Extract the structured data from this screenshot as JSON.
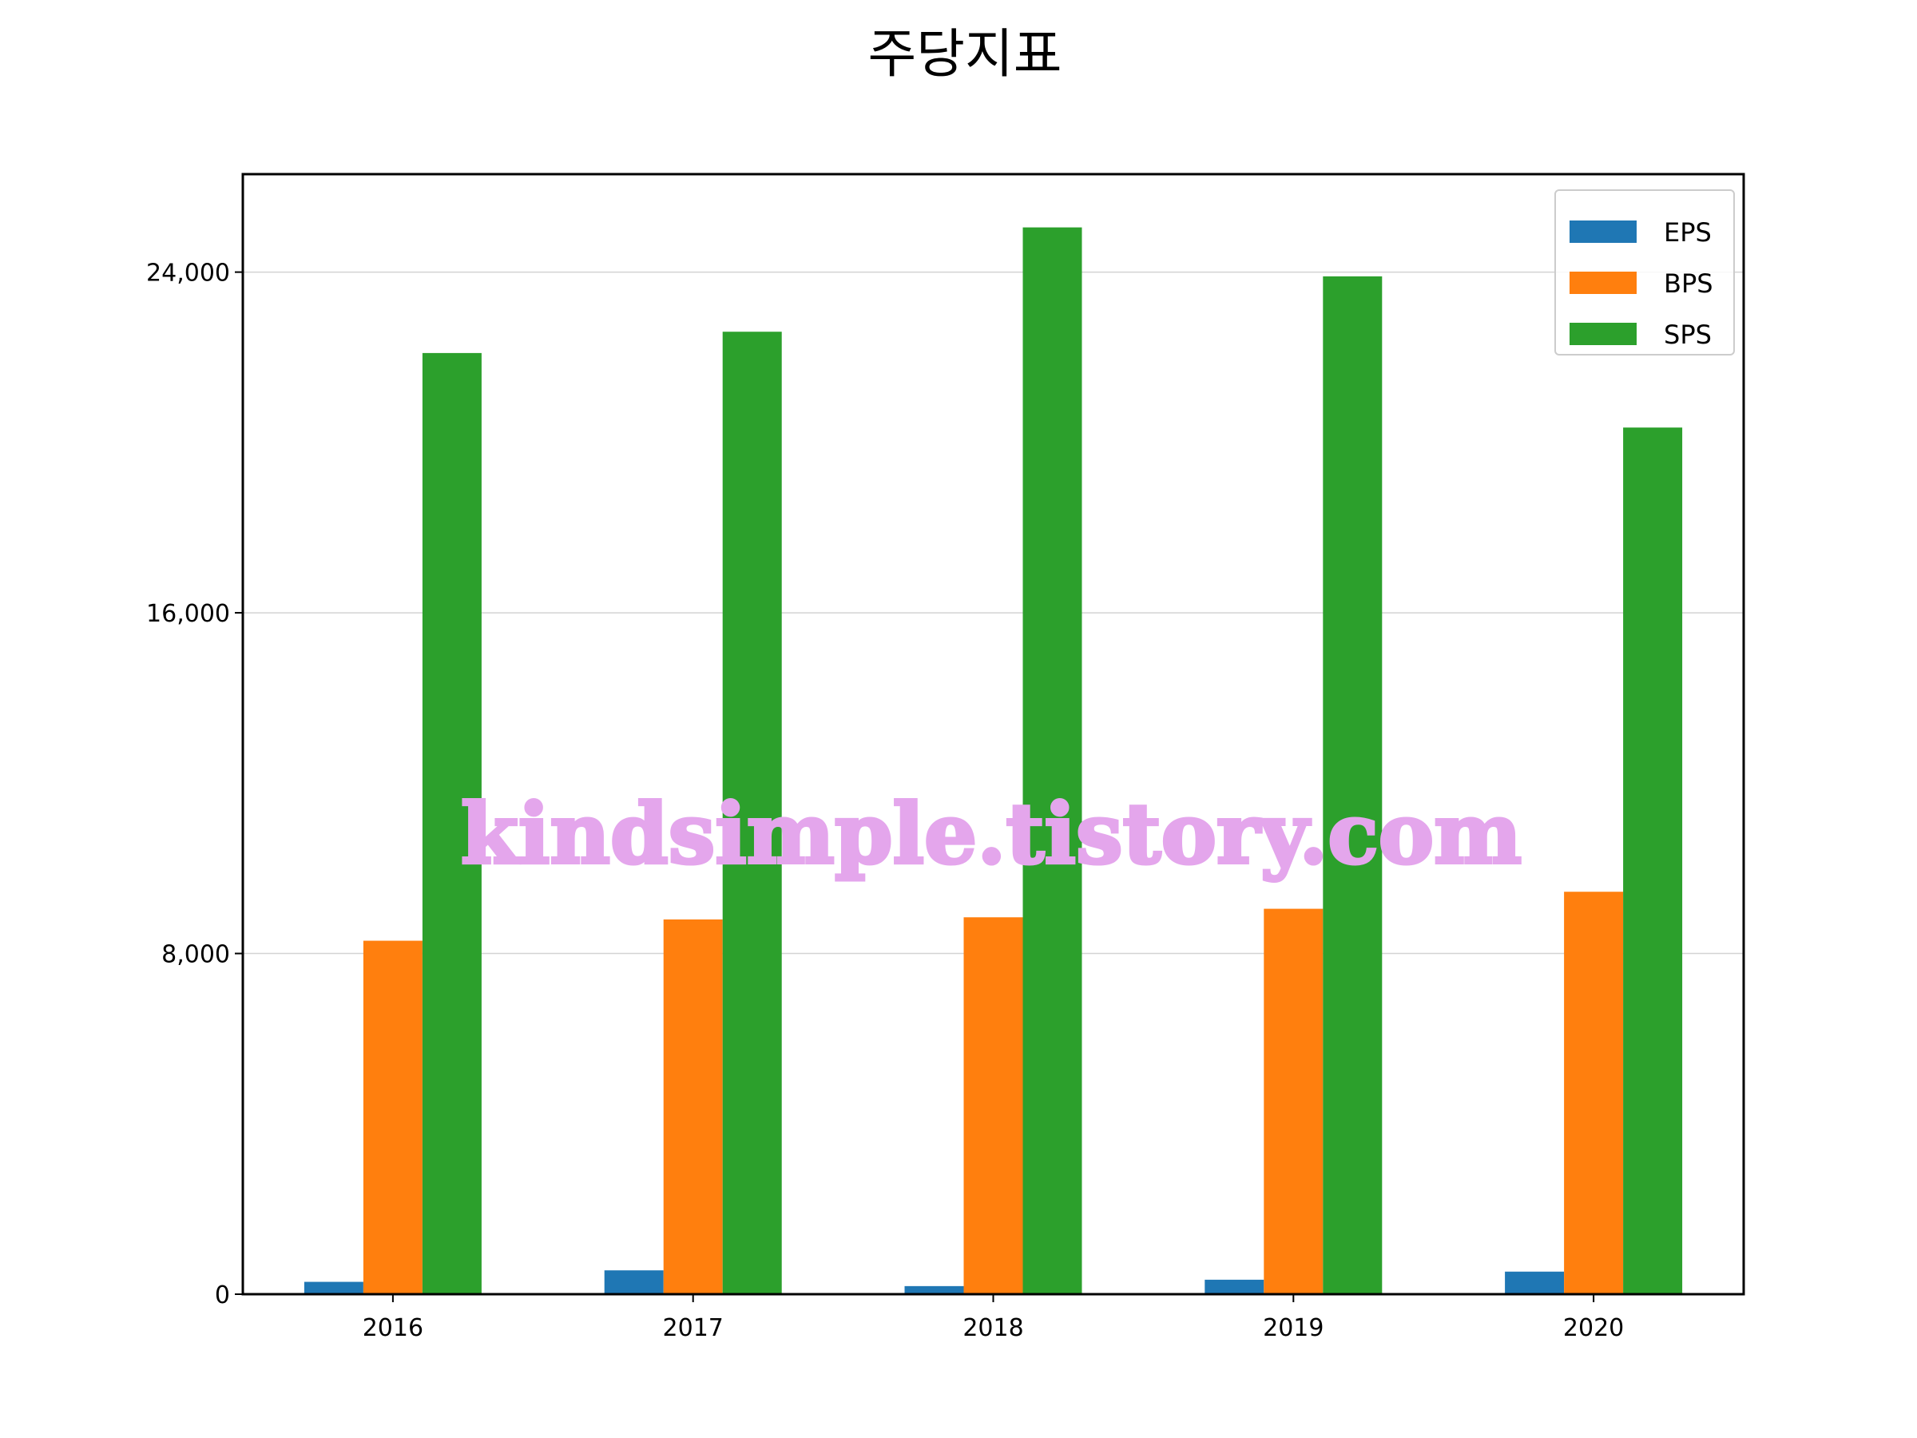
{
  "chart_data": {
    "type": "bar",
    "title": "주당지표",
    "xlabel": "",
    "ylabel": "",
    "categories": [
      "2016",
      "2017",
      "2018",
      "2019",
      "2020"
    ],
    "series": [
      {
        "name": "EPS",
        "color": "#1f77b4",
        "values": [
          290,
          560,
          190,
          340,
          530
        ]
      },
      {
        "name": "BPS",
        "color": "#ff7f0e",
        "values": [
          8300,
          8800,
          8850,
          9050,
          9450
        ]
      },
      {
        "name": "SPS",
        "color": "#2ca02c",
        "values": [
          22100,
          22600,
          25050,
          23900,
          20350
        ]
      }
    ],
    "ylim": [
      0,
      26300
    ],
    "yticks": [
      0,
      8000,
      16000,
      24000
    ],
    "ytick_labels": [
      "0",
      "8,000",
      "16,000",
      "24,000"
    ],
    "grid": "y",
    "legend_position": "top-right",
    "watermark": "kindsimple.tistory.com"
  }
}
